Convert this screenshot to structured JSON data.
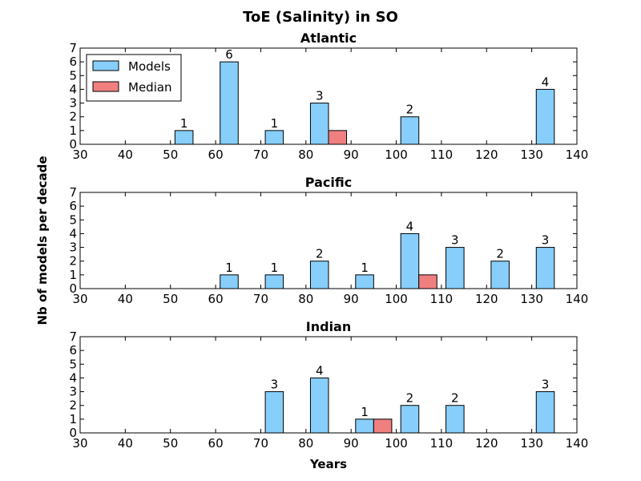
{
  "chart_data": {
    "type": "bar",
    "title": "ToE (Salinity) in SO",
    "xlabel": "Years",
    "ylabel": "Nb of models per decade",
    "xlim": [
      30,
      140
    ],
    "ylim": [
      0,
      7
    ],
    "xticks": [
      "30",
      "40",
      "50",
      "60",
      "70",
      "80",
      "90",
      "100",
      "110",
      "120",
      "130",
      "140"
    ],
    "yticks": [
      "0",
      "1",
      "2",
      "3",
      "4",
      "5",
      "6",
      "7"
    ],
    "legend": {
      "position": "top-left",
      "entries": [
        {
          "name": "Models",
          "color": "#87cefa"
        },
        {
          "name": "Median",
          "color": "#f08080"
        }
      ]
    },
    "panels": [
      {
        "title": "Atlantic",
        "models": {
          "x": [
            50,
            60,
            70,
            80,
            100,
            130
          ],
          "values": [
            1,
            6,
            1,
            3,
            2,
            4
          ]
        },
        "median": {
          "x": [
            85
          ],
          "values": [
            1
          ]
        }
      },
      {
        "title": "Pacific",
        "models": {
          "x": [
            60,
            70,
            80,
            90,
            100,
            110,
            120,
            130
          ],
          "values": [
            1,
            1,
            2,
            1,
            4,
            3,
            2,
            3
          ]
        },
        "median": {
          "x": [
            105
          ],
          "values": [
            1
          ]
        }
      },
      {
        "title": "Indian",
        "models": {
          "x": [
            70,
            80,
            90,
            100,
            110,
            130
          ],
          "values": [
            3,
            4,
            1,
            2,
            2,
            3
          ]
        },
        "median": {
          "x": [
            95
          ],
          "values": [
            1
          ]
        }
      }
    ]
  }
}
